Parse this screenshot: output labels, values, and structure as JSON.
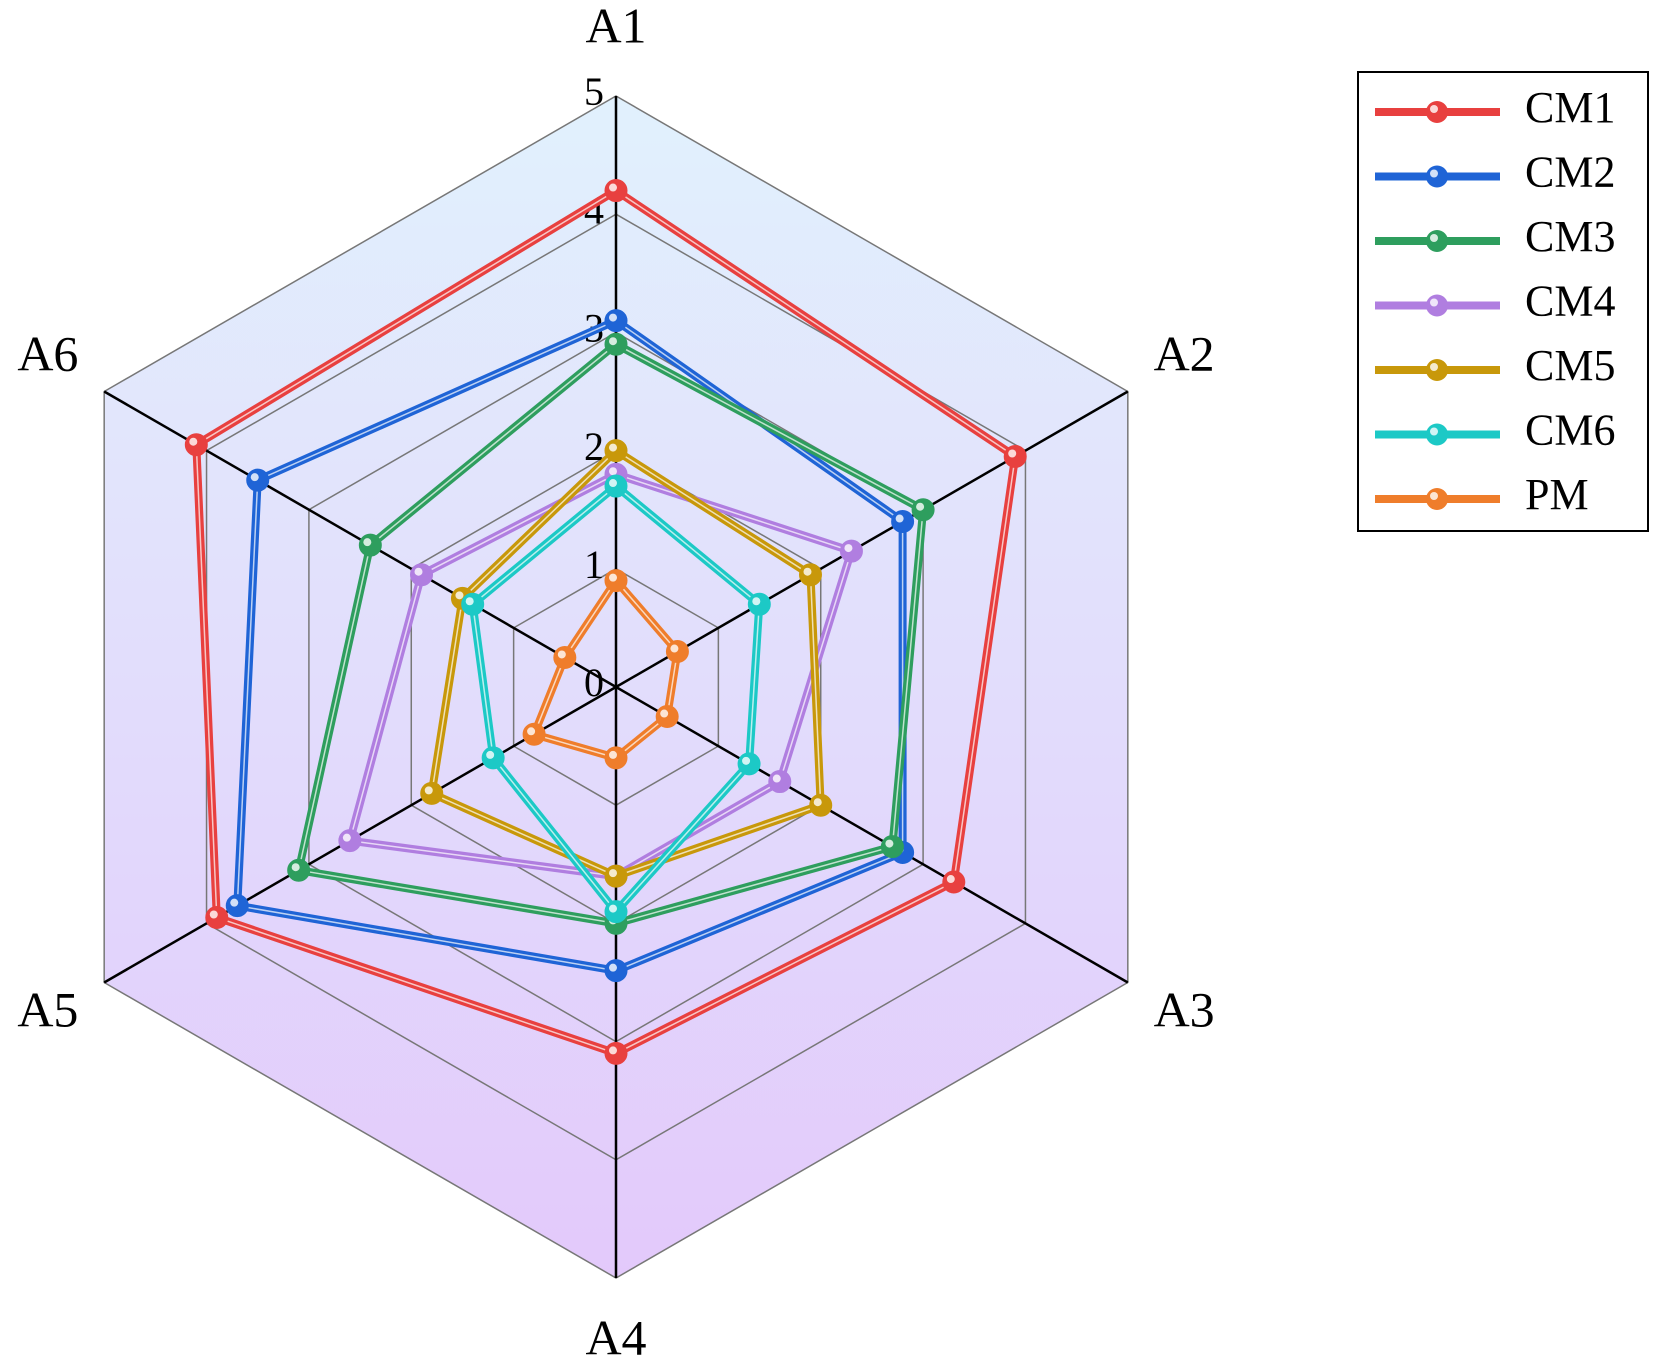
{
  "chart_data": {
    "type": "radar",
    "categories": [
      "A1",
      "A2",
      "A3",
      "A4",
      "A5",
      "A6"
    ],
    "ylim": [
      0,
      5
    ],
    "yticks": [
      0,
      1,
      2,
      3,
      4,
      5
    ],
    "grid": true,
    "series": [
      {
        "name": "CM1",
        "color": "#e8403f",
        "values": [
          4.2,
          3.9,
          3.3,
          3.1,
          3.9,
          4.1
        ]
      },
      {
        "name": "CM2",
        "color": "#1f64d6",
        "values": [
          3.1,
          2.8,
          2.8,
          2.4,
          3.7,
          3.5
        ]
      },
      {
        "name": "CM3",
        "color": "#2e9e5e",
        "values": [
          2.9,
          3.0,
          2.7,
          2.0,
          3.1,
          2.4
        ]
      },
      {
        "name": "CM4",
        "color": "#b07ee0",
        "values": [
          1.8,
          2.3,
          1.6,
          1.6,
          2.6,
          1.9
        ]
      },
      {
        "name": "CM5",
        "color": "#c8980a",
        "values": [
          2.0,
          1.9,
          2.0,
          1.6,
          1.8,
          1.5
        ]
      },
      {
        "name": "CM6",
        "color": "#1cc9c6",
        "values": [
          1.7,
          1.4,
          1.3,
          1.9,
          1.2,
          1.4
        ]
      },
      {
        "name": "PM",
        "color": "#ef7d2b",
        "values": [
          0.9,
          0.6,
          0.5,
          0.6,
          0.8,
          0.5
        ]
      }
    ]
  }
}
